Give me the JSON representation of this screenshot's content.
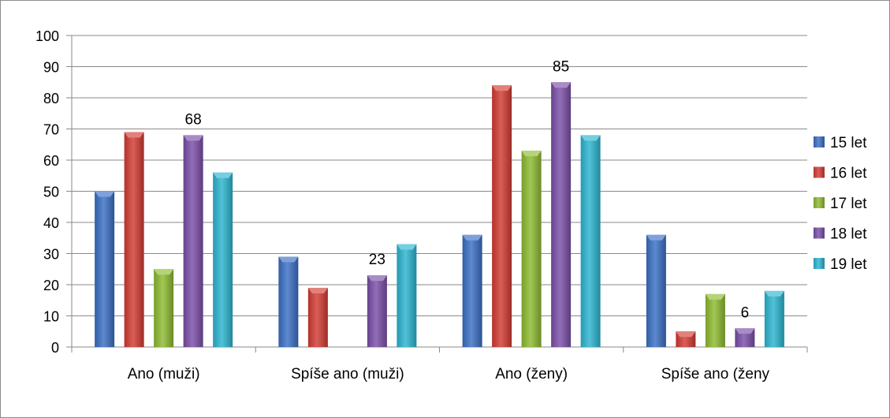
{
  "chart_data": {
    "type": "bar",
    "categories": [
      "Ano (muži)",
      "Spíše ano (muži)",
      "Ano (ženy)",
      "Spíše ano (ženy"
    ],
    "series": [
      {
        "name": "15 let",
        "color": "#3a6fc4",
        "values": [
          50,
          29,
          36,
          36
        ]
      },
      {
        "name": "16 let",
        "color": "#d23b33",
        "values": [
          69,
          19,
          84,
          5
        ]
      },
      {
        "name": "17 let",
        "color": "#8dbb30",
        "values": [
          25,
          0,
          63,
          17
        ]
      },
      {
        "name": "18 let",
        "color": "#7a4ea8",
        "values": [
          68,
          23,
          85,
          6
        ]
      },
      {
        "name": "19 let",
        "color": "#2bb5d0",
        "values": [
          56,
          33,
          68,
          18
        ]
      }
    ],
    "data_labels": [
      {
        "series": 3,
        "category": 0,
        "text": "68"
      },
      {
        "series": 3,
        "category": 1,
        "text": "23"
      },
      {
        "series": 3,
        "category": 2,
        "text": "85"
      },
      {
        "series": 3,
        "category": 3,
        "text": "6"
      }
    ],
    "y_ticks": [
      "0",
      "10",
      "20",
      "30",
      "40",
      "50",
      "60",
      "70",
      "80",
      "90",
      "100"
    ],
    "ylim": [
      0,
      100
    ],
    "grid": true,
    "legend_position": "right",
    "title": "",
    "xlabel": "",
    "ylabel": ""
  }
}
